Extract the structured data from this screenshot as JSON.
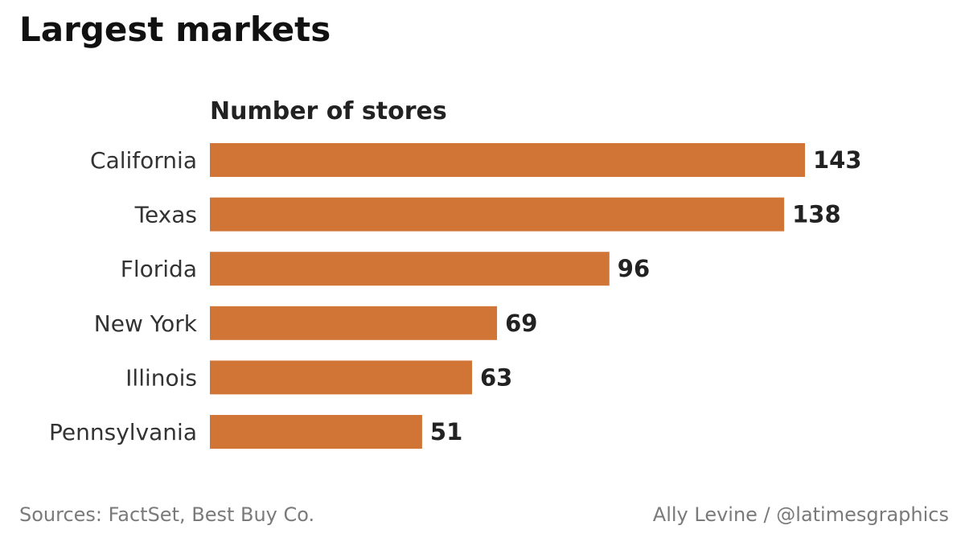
{
  "title": "Largest markets",
  "footer": {
    "sources": "Sources: FactSet, Best Buy Co.",
    "credit": "Ally Levine / @latimesgraphics"
  },
  "chart_data": {
    "type": "bar",
    "orientation": "horizontal",
    "subtitle": "Number of stores",
    "categories": [
      "California",
      "Texas",
      "Florida",
      "New York",
      "Illinois",
      "Pennsylvania"
    ],
    "values": [
      143,
      138,
      96,
      69,
      63,
      51
    ],
    "bar_color": "#d07535",
    "xlim": [
      0,
      143
    ],
    "grid": false,
    "legend": "none"
  }
}
